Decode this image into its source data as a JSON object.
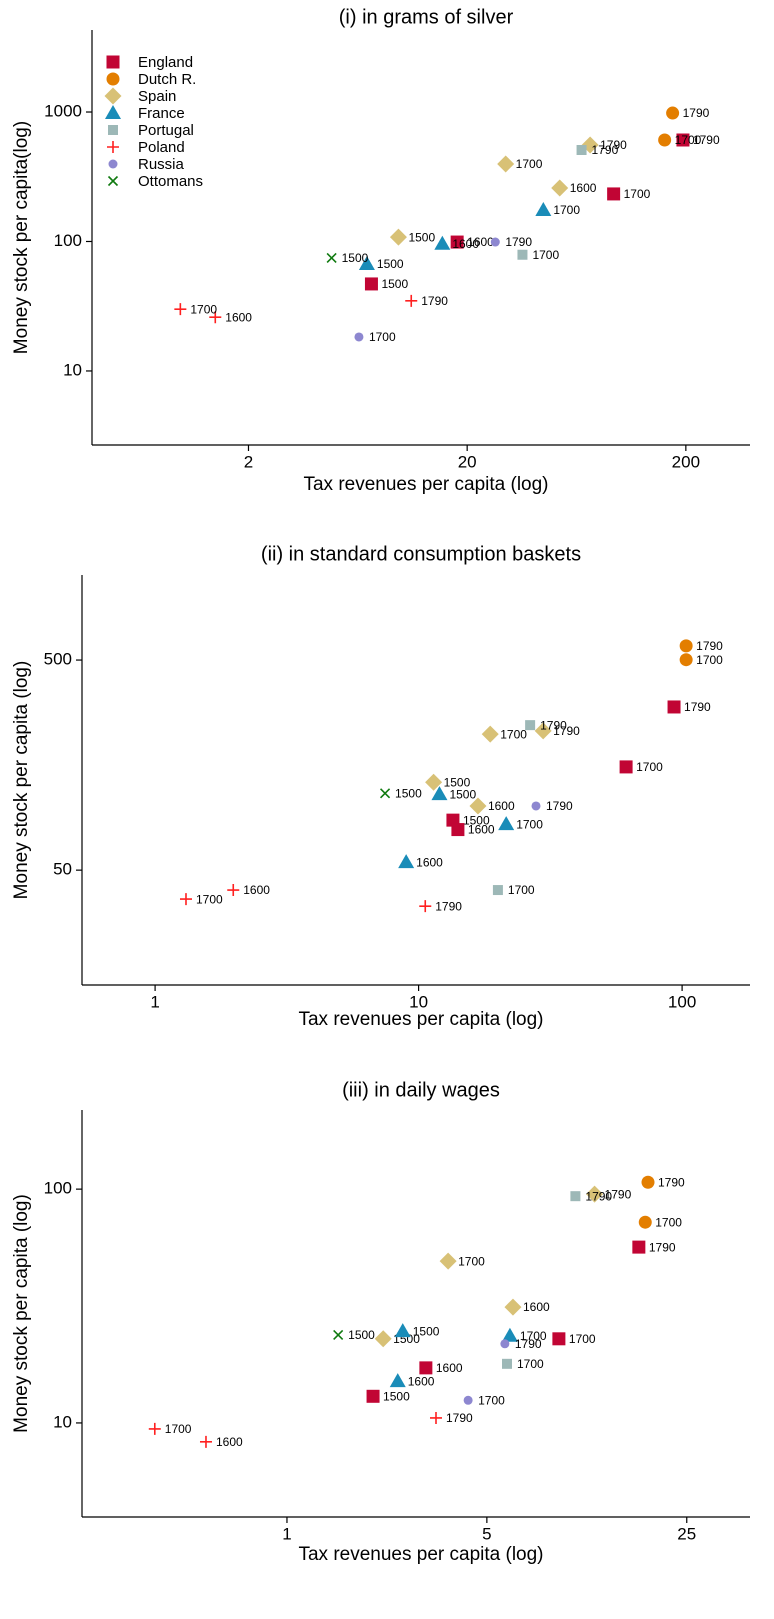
{
  "chart_data": [
    {
      "type": "scatter",
      "title": "(i) in grams of silver",
      "x_label": "Tax revenues per capita (log)",
      "y_label": "Money stock per capita(log)",
      "log_x": true,
      "log_y": true,
      "xlim": [
        0.385,
        393
      ],
      "ylim": [
        2.68,
        4300
      ],
      "xticks": [
        2,
        20,
        200
      ],
      "yticks": [
        10,
        100,
        1000
      ],
      "legend": "upper left",
      "series": [
        {
          "name": "England",
          "color": "#c10534",
          "marker": "square",
          "x": [
            7.3,
            18,
            93.5,
            194
          ],
          "values": [
            47,
            99,
            233,
            608
          ],
          "labels": [
            "1500",
            "1600",
            "1700",
            "1790"
          ]
        },
        {
          "name": "Dutch R.",
          "color": "#e37e00",
          "marker": "circle",
          "x": [
            160,
            174
          ],
          "values": [
            608,
            982
          ],
          "labels": [
            "1700",
            "1790"
          ]
        },
        {
          "name": "Spain",
          "color": "#d8c176",
          "marker": "diamond",
          "x": [
            9.7,
            53,
            30,
            73
          ],
          "values": [
            108,
            259,
            397,
            556
          ],
          "labels": [
            "1500",
            "1600",
            "1700",
            "1790"
          ]
        },
        {
          "name": "France",
          "color": "#1a8cb8",
          "marker": "triangle",
          "x": [
            6.96,
            15.4,
            44.6
          ],
          "values": [
            67,
            96,
            175
          ],
          "labels": [
            "1500",
            "1600",
            "1700"
          ]
        },
        {
          "name": "Portugal",
          "color": "#9db8b7",
          "marker": "small-square",
          "x": [
            35.8,
            66.7
          ],
          "values": [
            79,
            509
          ],
          "labels": [
            "1700",
            "1790"
          ]
        },
        {
          "name": "Poland",
          "color": "#ff2020",
          "marker": "plus",
          "x": [
            1.41,
            0.976,
            11.1
          ],
          "values": [
            26,
            30,
            34.8
          ],
          "labels": [
            "1600",
            "1700",
            "1790"
          ]
        },
        {
          "name": "Russia",
          "color": "#8d87d0",
          "marker": "small-circle",
          "x": [
            6.4,
            26.9
          ],
          "values": [
            18.3,
            99
          ],
          "labels": [
            "1700",
            "1790"
          ]
        },
        {
          "name": "Ottomans",
          "color": "#107a10",
          "marker": "cross",
          "x": [
            4.8
          ],
          "values": [
            74.6
          ],
          "labels": [
            "1500"
          ]
        }
      ]
    },
    {
      "type": "scatter",
      "title": "(ii) in standard consumption baskets",
      "x_label": "Tax revenues per capita (log)",
      "y_label": "Money stock per capita (log)",
      "log_x": true,
      "log_y": true,
      "xlim": [
        0.528,
        181
      ],
      "ylim": [
        14.2,
        1270
      ],
      "xticks": [
        1,
        10,
        100
      ],
      "yticks": [
        50,
        500
      ],
      "series": [
        {
          "color": "#c10534",
          "marker": "square",
          "x": [
            13.5,
            14.1,
            61.3,
            93.2
          ],
          "values": [
            86.5,
            78,
            155,
            299
          ],
          "labels": [
            "1500",
            "1600",
            "1700",
            "1790"
          ]
        },
        {
          "color": "#e37e00",
          "marker": "circle",
          "x": [
            103.6,
            103.6
          ],
          "values": [
            502,
            584
          ],
          "labels": [
            "1700",
            "1790"
          ]
        },
        {
          "color": "#d8c176",
          "marker": "diamond",
          "x": [
            11.4,
            16.8,
            18.7,
            29.7
          ],
          "values": [
            131,
            101,
            222,
            230
          ],
          "labels": [
            "1500",
            "1600",
            "1700",
            "1790"
          ]
        },
        {
          "color": "#1a8cb8",
          "marker": "triangle",
          "x": [
            12,
            8.97,
            21.5
          ],
          "values": [
            115,
            54.6,
            82.8
          ],
          "labels": [
            "1500",
            "1600",
            "1700"
          ]
        },
        {
          "color": "#9db8b7",
          "marker": "small-square",
          "x": [
            20,
            26.5
          ],
          "values": [
            40.2,
            245
          ],
          "labels": [
            "1700",
            "1790"
          ]
        },
        {
          "color": "#ff2020",
          "marker": "plus",
          "x": [
            1.98,
            1.31,
            10.6
          ],
          "values": [
            40.2,
            36.4,
            33.7
          ],
          "labels": [
            "1600",
            "1700",
            "1790"
          ]
        },
        {
          "color": "#8d87d0",
          "marker": "small-circle",
          "x": [
            27.9
          ],
          "values": [
            101
          ],
          "labels": [
            "1790"
          ]
        },
        {
          "color": "#107a10",
          "marker": "cross",
          "x": [
            7.46
          ],
          "values": [
            116
          ],
          "labels": [
            "1500"
          ]
        }
      ]
    },
    {
      "type": "scatter",
      "title": "(iii) in daily wages",
      "x_label": "Tax revenues per capita (log)",
      "y_label": "Money stock per capita (log)",
      "log_x": true,
      "log_y": true,
      "xlim": [
        0.192,
        41.6
      ],
      "ylim": [
        3.96,
        218
      ],
      "xticks": [
        1,
        5,
        25
      ],
      "yticks": [
        10,
        100
      ],
      "series": [
        {
          "color": "#c10534",
          "marker": "square",
          "x": [
            2.0,
            3.06,
            8.93,
            17.0
          ],
          "values": [
            13.0,
            17.2,
            22.9,
            56.5
          ],
          "labels": [
            "1500",
            "1600",
            "1700",
            "1790"
          ]
        },
        {
          "color": "#e37e00",
          "marker": "circle",
          "x": [
            17.9,
            18.3
          ],
          "values": [
            72.2,
            107
          ],
          "labels": [
            "1700",
            "1790"
          ]
        },
        {
          "color": "#d8c176",
          "marker": "diamond",
          "x": [
            2.17,
            6.17,
            3.66,
            11.9
          ],
          "values": [
            22.9,
            31.3,
            49.2,
            95.2
          ],
          "labels": [
            "1500",
            "1600",
            "1700",
            "1790"
          ]
        },
        {
          "color": "#1a8cb8",
          "marker": "triangle",
          "x": [
            2.54,
            2.44,
            6.02
          ],
          "values": [
            24.7,
            15.1,
            23.6
          ],
          "labels": [
            "1500",
            "1600",
            "1700"
          ]
        },
        {
          "color": "#9db8b7",
          "marker": "small-square",
          "x": [
            5.88,
            10.2
          ],
          "values": [
            17.9,
            93.3
          ],
          "labels": [
            "1700",
            "1790"
          ]
        },
        {
          "color": "#ff2020",
          "marker": "plus",
          "x": [
            0.521,
            0.345,
            3.32
          ],
          "values": [
            8.3,
            9.43,
            10.5
          ],
          "labels": [
            "1600",
            "1700",
            "1790"
          ]
        },
        {
          "color": "#8d87d0",
          "marker": "small-circle",
          "x": [
            4.3,
            5.78
          ],
          "values": [
            12.5,
            21.8
          ],
          "labels": [
            "1700",
            "1790"
          ]
        },
        {
          "color": "#107a10",
          "marker": "cross",
          "x": [
            1.51
          ],
          "values": [
            23.8
          ],
          "labels": [
            "1500"
          ]
        }
      ]
    }
  ]
}
